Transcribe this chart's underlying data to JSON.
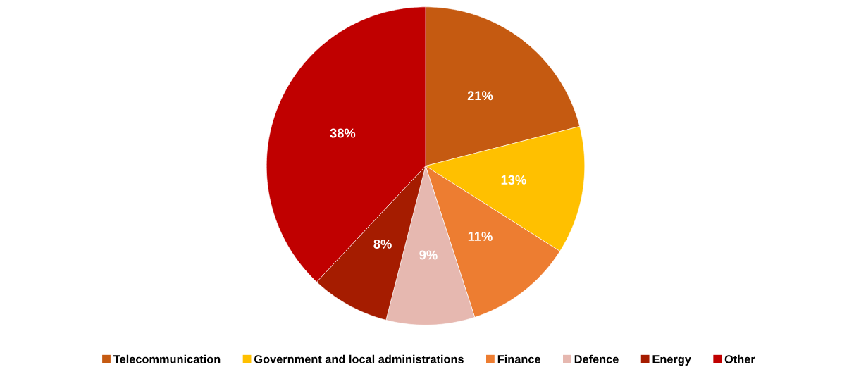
{
  "chart_data": {
    "type": "pie",
    "categories": [
      "Telecommunication",
      "Government and local administrations",
      "Finance",
      "Defence",
      "Energy",
      "Other"
    ],
    "values": [
      21,
      13,
      11,
      9,
      8,
      38
    ],
    "value_labels": [
      "21%",
      "13%",
      "11%",
      "9%",
      "8%",
      "38%"
    ],
    "colors": [
      "#c55a11",
      "#ffc000",
      "#ed7d31",
      "#e6b8b0",
      "#a51c00",
      "#c00000"
    ],
    "legend": "bottom"
  }
}
